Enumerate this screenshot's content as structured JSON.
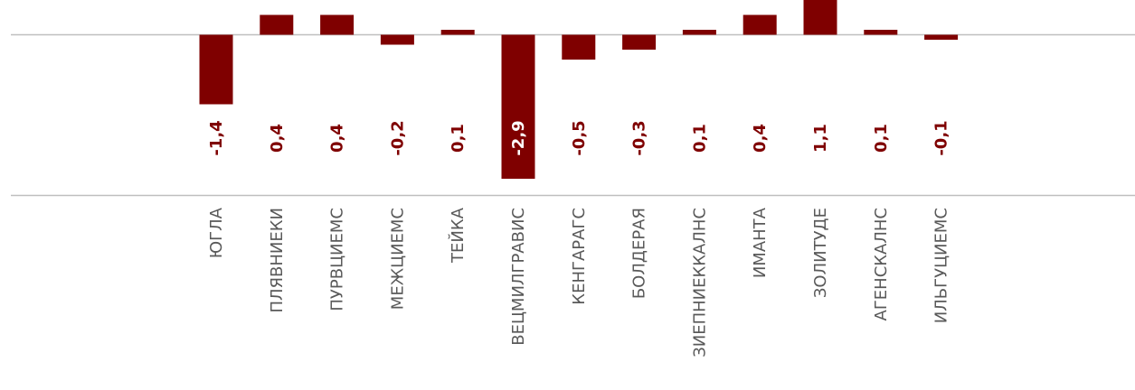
{
  "chart_data": {
    "type": "bar",
    "categories": [
      "ЮГЛА",
      "ПЛЯВНИЕКИ",
      "ПУРВЦИЕМС",
      "МЕЖЦИЕМС",
      "ТЕЙКА",
      "ВЕЦМИЛГРАВИС",
      "КЕНГАРАГС",
      "БОЛДЕРАЯ",
      "ЗИЕПНИЕККАЛНС",
      "ИМАНТА",
      "ЗОЛИТУДЕ",
      "АГЕНСКАЛНС",
      "ИЛЬГУЦИЕМС"
    ],
    "values": [
      -1.4,
      0.4,
      0.4,
      -0.2,
      0.1,
      -2.9,
      -0.5,
      -0.3,
      0.1,
      0.4,
      1.1,
      0.1,
      -0.1
    ],
    "labels": [
      "-1,4",
      "0,4",
      "0,4",
      "-0,2",
      "0,1",
      "-2,9",
      "-0,5",
      "-0,3",
      "0,1",
      "0,4",
      "1,1",
      "0,1",
      "-0,1"
    ],
    "title": "",
    "xlabel": "",
    "ylabel": "",
    "grid": false,
    "colors": {
      "bar": "#7f0000",
      "label_on_bar": "#ffffff",
      "axis": "#bfbfbf",
      "category_text": "#595959"
    }
  }
}
